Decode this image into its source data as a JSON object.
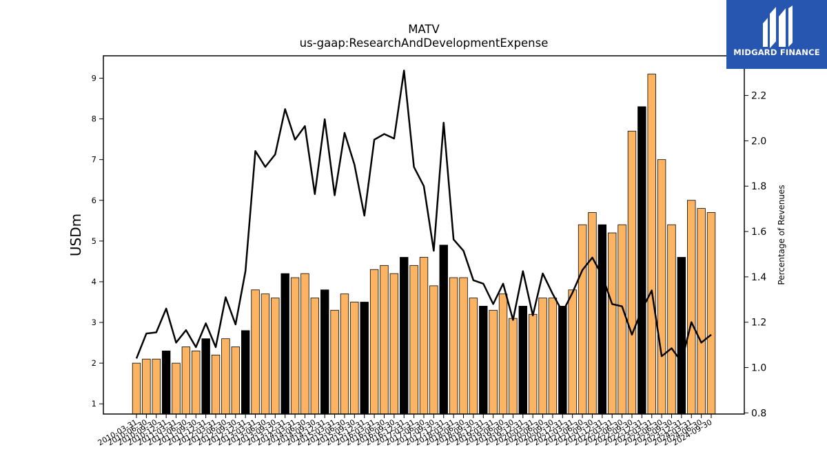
{
  "chart_data": {
    "type": "bar+line",
    "title": "MATV",
    "subtitle": "us-gaap:ResearchAndDevelopmentExpense",
    "ylabel": "USDm",
    "y2label": "Percentage of Revenues",
    "ylim": [
      0.75,
      9.55
    ],
    "y2lim": [
      0.795,
      2.375
    ],
    "yticks": [
      1,
      2,
      3,
      4,
      5,
      6,
      7,
      8,
      9
    ],
    "y2ticks": [
      0.8,
      1.0,
      1.2,
      1.4,
      1.6,
      1.8,
      2.0,
      2.2
    ],
    "categories": [
      "2010-03-31",
      "2010-06-30",
      "2010-09-30",
      "2010-12-31",
      "2011-03-31",
      "2011-06-30",
      "2011-09-30",
      "2011-12-31",
      "2012-03-31",
      "2012-06-30",
      "2012-09-30",
      "2012-12-31",
      "2013-03-31",
      "2013-06-30",
      "2013-09-30",
      "2013-12-31",
      "2014-03-31",
      "2014-06-30",
      "2014-09-30",
      "2014-12-31",
      "2015-03-31",
      "2015-06-30",
      "2015-09-30",
      "2015-12-31",
      "2016-03-31",
      "2016-06-30",
      "2016-09-30",
      "2016-12-31",
      "2017-03-31",
      "2017-06-30",
      "2017-09-30",
      "2017-12-31",
      "2018-03-31",
      "2018-06-30",
      "2018-09-30",
      "2018-12-31",
      "2019-03-31",
      "2019-06-30",
      "2019-09-30",
      "2019-12-31",
      "2020-03-31",
      "2020-06-30",
      "2020-09-30",
      "2020-12-31",
      "2021-03-31",
      "2021-06-30",
      "2021-09-30",
      "2021-12-31",
      "2022-03-31",
      "2022-06-30",
      "2022-09-30",
      "2022-12-31",
      "2023-03-31",
      "2023-06-30",
      "2023-09-30",
      "2023-12-31",
      "2024-03-31",
      "2024-06-30",
      "2024-09-30"
    ],
    "bar_values": [
      2.0,
      2.1,
      2.1,
      2.3,
      2.0,
      2.4,
      2.3,
      2.6,
      2.2,
      2.6,
      2.4,
      2.8,
      3.8,
      3.7,
      3.6,
      4.2,
      4.1,
      4.2,
      3.6,
      3.8,
      3.3,
      3.7,
      3.5,
      3.5,
      4.3,
      4.4,
      4.2,
      4.6,
      4.4,
      4.6,
      3.9,
      4.9,
      4.1,
      4.1,
      3.6,
      3.4,
      3.3,
      3.7,
      3.1,
      3.4,
      3.2,
      3.6,
      3.6,
      3.4,
      3.8,
      5.4,
      5.7,
      5.4,
      5.2,
      5.4,
      7.7,
      8.3,
      9.1,
      7.0,
      5.4,
      4.6,
      6.0,
      5.8,
      5.7
    ],
    "line_values": [
      1.04,
      1.15,
      1.155,
      1.26,
      1.11,
      1.165,
      1.09,
      1.195,
      1.09,
      1.31,
      1.19,
      1.425,
      1.955,
      1.885,
      1.94,
      2.14,
      2.005,
      2.065,
      1.765,
      2.095,
      1.76,
      2.035,
      1.895,
      1.67,
      2.005,
      2.03,
      2.01,
      2.31,
      1.885,
      1.8,
      1.515,
      2.08,
      1.565,
      1.515,
      1.385,
      1.37,
      1.28,
      1.37,
      1.21,
      1.425,
      1.23,
      1.415,
      1.325,
      1.245,
      1.33,
      1.43,
      1.485,
      1.405,
      1.28,
      1.27,
      1.145,
      1.255,
      1.34,
      1.05,
      1.085,
      1.025,
      1.2,
      1.11,
      1.145
    ],
    "bar_color": "#fdb462",
    "highlight_color": "#000000",
    "line_color": "#000000",
    "grid": false,
    "legend": "none"
  },
  "logo": {
    "name": "MIDGARD FINANCE",
    "background": "#2756b0",
    "icon": "midgard-m-icon"
  }
}
